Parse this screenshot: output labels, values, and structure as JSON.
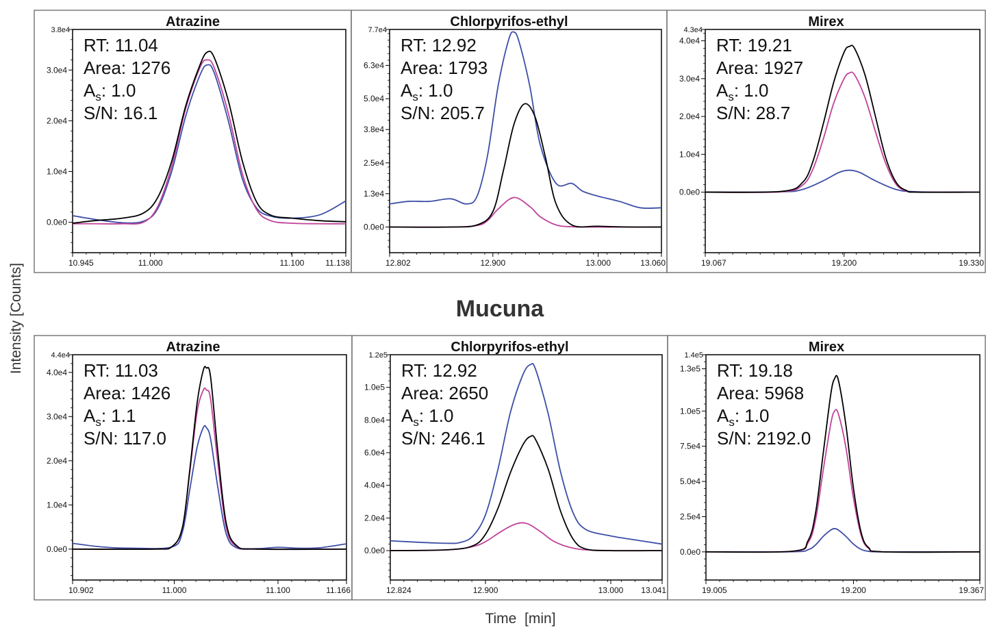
{
  "figure": {
    "ylabel": "Intensity [Counts]",
    "xlabel": "Time  [min]",
    "row2_title": "Mucuna"
  },
  "series_colors": [
    "#000000",
    "#c0429a",
    "#3c4ea6"
  ],
  "chart_data": [
    {
      "type": "line",
      "title": "Atrazine",
      "xlim": [
        10.945,
        11.138
      ],
      "ylim": [
        -6000,
        38000
      ],
      "xticks": [
        10.945,
        11.0,
        11.1,
        11.138
      ],
      "xticklabels": [
        "10.945",
        "11.000",
        "11.100",
        "11.138"
      ],
      "yticks": [
        0,
        10000,
        20000,
        30000
      ],
      "yticklabels": [
        "0.0e0",
        "1.0e4",
        "2.0e4",
        "3.0e4"
      ],
      "ymax_label": "3.8e4",
      "annotation": {
        "rt": "RT: 11.04",
        "area": "Area: 1276",
        "as_prefix": "A",
        "as_sub": "s",
        "as_value": ": 1.0",
        "sn": "S/N: 16.1"
      },
      "series": [
        {
          "x": [
            10.945,
            10.96,
            10.98,
            10.995,
            11.005,
            11.015,
            11.025,
            11.035,
            11.04,
            11.045,
            11.055,
            11.065,
            11.075,
            11.085,
            11.1,
            11.12,
            11.138
          ],
          "y": [
            -200,
            300,
            800,
            1800,
            4800,
            12000,
            23000,
            31000,
            33500,
            32500,
            24000,
            12000,
            4000,
            1400,
            800,
            300,
            100
          ]
        },
        {
          "x": [
            10.945,
            10.96,
            10.98,
            10.995,
            11.005,
            11.015,
            11.025,
            11.035,
            11.04,
            11.045,
            11.055,
            11.065,
            11.075,
            11.085,
            11.1,
            11.12,
            11.138
          ],
          "y": [
            -300,
            -300,
            -300,
            0,
            3000,
            11000,
            22500,
            30500,
            32000,
            30500,
            21500,
            9500,
            2500,
            300,
            -200,
            -300,
            -300
          ]
        },
        {
          "x": [
            10.945,
            10.96,
            10.98,
            10.995,
            11.005,
            11.015,
            11.025,
            11.035,
            11.04,
            11.045,
            11.055,
            11.065,
            11.075,
            11.085,
            11.1,
            11.12,
            11.138
          ],
          "y": [
            1300,
            600,
            -100,
            200,
            2600,
            10000,
            21000,
            29000,
            31000,
            29500,
            20000,
            8500,
            2800,
            1200,
            800,
            1500,
            4200
          ]
        }
      ]
    },
    {
      "type": "line",
      "title": "Chlorpyrifos-ethyl",
      "xlim": [
        12.802,
        13.06
      ],
      "ylim": [
        -10000,
        77000
      ],
      "xticks": [
        12.802,
        12.9,
        13.0,
        13.06
      ],
      "xticklabels": [
        "12.802",
        "12.900",
        "13.000",
        "13.060"
      ],
      "yticks": [
        0,
        13000,
        25000,
        38000,
        50000,
        63000
      ],
      "yticklabels": [
        "0.0e0",
        "1.3e4",
        "2.5e4",
        "3.8e4",
        "5.0e4",
        "6.3e4"
      ],
      "ymax_label": "7.7e4",
      "annotation": {
        "rt": "RT: 12.92",
        "area": "Area: 1793",
        "as_prefix": "A",
        "as_sub": "s",
        "as_value": ": 1.0",
        "sn": "S/N: 205.7"
      },
      "series": [
        {
          "x": [
            12.802,
            12.86,
            12.885,
            12.9,
            12.91,
            12.92,
            12.93,
            12.94,
            12.95,
            12.96,
            12.975,
            13.0,
            13.03,
            13.06
          ],
          "y": [
            0,
            0,
            800,
            6000,
            22000,
            40000,
            48000,
            43000,
            27000,
            9000,
            800,
            300,
            0,
            0
          ]
        },
        {
          "x": [
            12.802,
            12.86,
            12.885,
            12.895,
            12.905,
            12.92,
            12.935,
            12.945,
            12.96,
            12.975,
            13.0,
            13.06
          ],
          "y": [
            0,
            0,
            600,
            2500,
            7000,
            11500,
            8000,
            4000,
            800,
            100,
            0,
            0
          ]
        },
        {
          "x": [
            12.802,
            12.82,
            12.84,
            12.86,
            12.875,
            12.885,
            12.895,
            12.905,
            12.915,
            12.92,
            12.925,
            12.935,
            12.945,
            12.96,
            12.975,
            12.985,
            13.0,
            13.02,
            13.04,
            13.06
          ],
          "y": [
            9000,
            10000,
            10000,
            11000,
            9000,
            12000,
            28000,
            55000,
            73000,
            76000,
            72000,
            55000,
            32000,
            17000,
            17000,
            14000,
            12000,
            10000,
            7500,
            7500
          ]
        }
      ]
    },
    {
      "type": "line",
      "title": "Mirex",
      "xlim": [
        19.067,
        19.33
      ],
      "ylim": [
        -16000,
        43000
      ],
      "xticks": [
        19.067,
        19.2,
        19.33
      ],
      "xticklabels": [
        "19.067",
        "19.200",
        "19.330"
      ],
      "yticks": [
        0,
        10000,
        20000,
        30000,
        40000
      ],
      "yticklabels": [
        "0.0e0",
        "1.0e4",
        "2.0e4",
        "3.0e4",
        "4.0e4"
      ],
      "ymax_label": "4.3e4",
      "annotation": {
        "rt": "RT: 19.21",
        "area": "Area: 1927",
        "as_prefix": "A",
        "as_sub": "s",
        "as_value": ": 1.0",
        "sn": "S/N: 28.7"
      },
      "series": [
        {
          "x": [
            19.067,
            19.14,
            19.16,
            19.17,
            19.18,
            19.19,
            19.2,
            19.205,
            19.21,
            19.22,
            19.23,
            19.24,
            19.25,
            19.26,
            19.27,
            19.33
          ],
          "y": [
            0,
            200,
            2500,
            8000,
            18000,
            29000,
            37000,
            38500,
            38000,
            31000,
            20000,
            9000,
            2500,
            400,
            0,
            0
          ]
        },
        {
          "x": [
            19.067,
            19.14,
            19.16,
            19.17,
            19.18,
            19.19,
            19.2,
            19.205,
            19.21,
            19.22,
            19.23,
            19.24,
            19.25,
            19.26,
            19.27,
            19.33
          ],
          "y": [
            0,
            100,
            1800,
            6000,
            14000,
            23500,
            30000,
            31500,
            31000,
            25000,
            16000,
            7500,
            2000,
            300,
            0,
            0
          ]
        },
        {
          "x": [
            19.067,
            19.14,
            19.16,
            19.18,
            19.195,
            19.205,
            19.215,
            19.23,
            19.25,
            19.27,
            19.33
          ],
          "y": [
            0,
            100,
            700,
            3000,
            5200,
            5800,
            5200,
            3000,
            700,
            100,
            0
          ]
        }
      ]
    },
    {
      "type": "line",
      "title": "Atrazine",
      "xlim": [
        10.902,
        11.166
      ],
      "ylim": [
        -7000,
        44000
      ],
      "xticks": [
        10.902,
        11.0,
        11.1,
        11.166
      ],
      "xticklabels": [
        "10.902",
        "11.000",
        "11.100",
        "11.166"
      ],
      "yticks": [
        0,
        10000,
        20000,
        30000,
        40000
      ],
      "yticklabels": [
        "0.0e0",
        "1.0e4",
        "2.0e4",
        "3.0e4",
        "4.0e4"
      ],
      "ymax_label": "4.4e4",
      "annotation": {
        "rt": "RT: 11.03",
        "area": "Area: 1426",
        "as_prefix": "A",
        "as_sub": "s",
        "as_value": ": 1.1",
        "sn": "S/N: 117.0"
      },
      "series": [
        {
          "x": [
            10.902,
            10.98,
            10.998,
            11.008,
            11.015,
            11.022,
            11.028,
            11.031,
            11.035,
            11.042,
            11.05,
            11.06,
            11.08,
            11.166
          ],
          "y": [
            0,
            0,
            600,
            5000,
            18000,
            33000,
            40500,
            41000,
            39000,
            22000,
            6000,
            800,
            0,
            0
          ]
        },
        {
          "x": [
            10.902,
            10.98,
            10.998,
            11.008,
            11.015,
            11.022,
            11.028,
            11.031,
            11.035,
            11.042,
            11.05,
            11.06,
            11.08,
            11.166
          ],
          "y": [
            0,
            0,
            600,
            5000,
            17500,
            31000,
            36000,
            36000,
            34000,
            19500,
            5000,
            600,
            0,
            0
          ]
        },
        {
          "x": [
            10.902,
            10.93,
            10.96,
            10.998,
            11.008,
            11.015,
            11.022,
            11.028,
            11.031,
            11.035,
            11.042,
            11.05,
            11.06,
            11.08,
            11.1,
            11.12,
            11.14,
            11.166
          ],
          "y": [
            1300,
            500,
            200,
            500,
            4000,
            13500,
            23000,
            27500,
            27500,
            25000,
            14000,
            3500,
            300,
            100,
            400,
            200,
            300,
            1200
          ]
        }
      ]
    },
    {
      "type": "line",
      "title": "Chlorpyrifos-ethyl",
      "xlim": [
        12.824,
        13.041
      ],
      "ylim": [
        -18000,
        120000
      ],
      "xticks": [
        12.824,
        12.9,
        13.0,
        13.041
      ],
      "xticklabels": [
        "12.824",
        "12.900",
        "13.000",
        "13.041"
      ],
      "yticks": [
        0,
        20000,
        40000,
        60000,
        80000,
        100000
      ],
      "yticklabels": [
        "0.0e0",
        "2.0e4",
        "4.0e4",
        "6.0e4",
        "8.0e4",
        "1.0e5"
      ],
      "ymax_label": "1.2e5",
      "annotation": {
        "rt": "RT: 12.92",
        "area": "Area: 2650",
        "as_prefix": "A",
        "as_sub": "s",
        "as_value": ": 1.0",
        "sn": "S/N: 246.1"
      },
      "series": [
        {
          "x": [
            12.824,
            12.87,
            12.89,
            12.9,
            12.91,
            12.92,
            12.93,
            12.936,
            12.94,
            12.95,
            12.96,
            12.97,
            12.98,
            13.0,
            13.041
          ],
          "y": [
            0,
            500,
            3000,
            10000,
            26000,
            48000,
            65000,
            70000,
            68000,
            50000,
            24000,
            7000,
            1000,
            0,
            0
          ]
        },
        {
          "x": [
            12.824,
            12.87,
            12.89,
            12.9,
            12.91,
            12.92,
            12.928,
            12.935,
            12.945,
            12.955,
            12.97,
            12.99,
            13.041
          ],
          "y": [
            0,
            500,
            2500,
            5500,
            10500,
            15000,
            17000,
            16000,
            11000,
            5500,
            1500,
            200,
            0
          ]
        },
        {
          "x": [
            12.824,
            12.85,
            12.87,
            12.88,
            12.89,
            12.9,
            12.91,
            12.92,
            12.93,
            12.936,
            12.94,
            12.95,
            12.96,
            12.97,
            12.98,
            13.0,
            13.02,
            13.041
          ],
          "y": [
            6000,
            5000,
            4500,
            5000,
            9000,
            22000,
            50000,
            85000,
            108000,
            114000,
            111000,
            84000,
            48000,
            23000,
            13000,
            9000,
            6500,
            4000
          ]
        }
      ]
    },
    {
      "type": "line",
      "title": "Mirex",
      "xlim": [
        19.005,
        19.367
      ],
      "ylim": [
        -20000,
        140000
      ],
      "xticks": [
        19.005,
        19.2,
        19.367
      ],
      "xticklabels": [
        "19.005",
        "19.200",
        "19.367"
      ],
      "yticks": [
        0,
        25000,
        50000,
        75000,
        100000,
        130000
      ],
      "yticklabels": [
        "0.0e0",
        "2.5e4",
        "5.0e4",
        "7.5e4",
        "1.0e5",
        "1.3e5"
      ],
      "ymax_label": "1.4e5",
      "annotation": {
        "rt": "RT: 19.18",
        "area": "Area: 5968",
        "as_prefix": "A",
        "as_sub": "s",
        "as_value": ": 1.0",
        "sn": "S/N: 2192.0"
      },
      "series": [
        {
          "x": [
            19.005,
            19.12,
            19.14,
            19.15,
            19.16,
            19.17,
            19.175,
            19.18,
            19.19,
            19.2,
            19.21,
            19.22,
            19.24,
            19.367
          ],
          "y": [
            0,
            500,
            8000,
            28000,
            70000,
            112000,
            123000,
            122000,
            90000,
            45000,
            14000,
            3000,
            0,
            0
          ]
        },
        {
          "x": [
            19.005,
            19.12,
            19.14,
            19.15,
            19.16,
            19.17,
            19.175,
            19.18,
            19.19,
            19.2,
            19.21,
            19.22,
            19.24,
            19.367
          ],
          "y": [
            0,
            400,
            6500,
            23000,
            58000,
            91000,
            100000,
            98000,
            74000,
            38000,
            12000,
            2500,
            0,
            0
          ]
        },
        {
          "x": [
            19.005,
            19.12,
            19.14,
            19.15,
            19.16,
            19.17,
            19.175,
            19.18,
            19.19,
            19.2,
            19.21,
            19.22,
            19.24,
            19.367
          ],
          "y": [
            0,
            100,
            1500,
            5000,
            11000,
            15500,
            16500,
            15500,
            11000,
            5500,
            1800,
            400,
            0,
            0
          ]
        }
      ]
    }
  ]
}
